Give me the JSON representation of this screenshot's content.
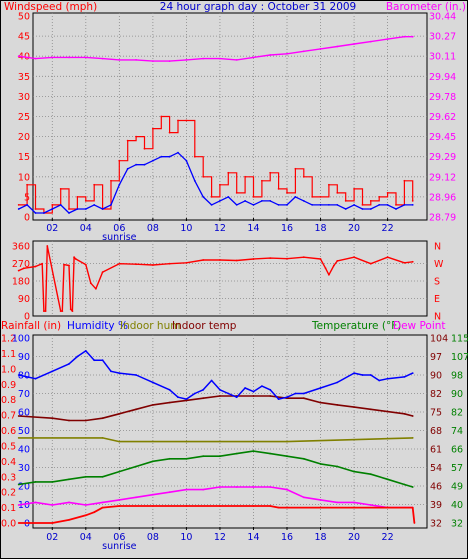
{
  "header": {
    "title": "24 hour graph day : October 31 2009"
  },
  "chart_data": [
    {
      "type": "line",
      "title": "24 hour graph day : October 31 2009",
      "left_label": "Windspeed (mph)",
      "right_label": "Barometer (in.)",
      "x_ticks": [
        "02",
        "04",
        "06",
        "08",
        "10",
        "12",
        "14",
        "16",
        "18",
        "20",
        "22"
      ],
      "x_annotation": "sunrise",
      "left_ticks": [
        "0",
        "5",
        "10",
        "15",
        "20",
        "25",
        "30",
        "35",
        "40",
        "45",
        "50"
      ],
      "right_ticks": [
        "28.79",
        "28.96",
        "29.12",
        "29.29",
        "29.45",
        "29.62",
        "29.78",
        "29.94",
        "30.11",
        "30.27",
        "30.44"
      ],
      "ylim_left": [
        0,
        50
      ],
      "ylim_right": [
        28.79,
        30.44
      ],
      "grid": true,
      "colors": {
        "gust": "#ff0000",
        "average": "#0000ff",
        "barometer": "#ff00ff",
        "left_axis": "#ff0000",
        "right_axis": "#ff00ff",
        "title": "#0000cc"
      },
      "series": [
        {
          "key": "gust",
          "x": [
            0,
            0.5,
            1,
            1.5,
            2,
            2.5,
            3,
            3.5,
            4,
            4.5,
            5,
            5.5,
            6,
            6.5,
            7,
            7.5,
            8,
            8.5,
            9,
            9.5,
            10,
            10.5,
            11,
            11.5,
            12,
            12.5,
            13,
            13.5,
            14,
            14.5,
            15,
            15.5,
            16,
            16.5,
            17,
            17.5,
            18,
            18.5,
            19,
            19.5,
            20,
            20.5,
            21,
            21.5,
            22,
            22.5,
            23,
            23.5
          ],
          "values": [
            3,
            8,
            2,
            1,
            3,
            7,
            2,
            5,
            4,
            8,
            2,
            9,
            14,
            19,
            20,
            17,
            22,
            25,
            21,
            24,
            24,
            15,
            10,
            5,
            8,
            11,
            6,
            10,
            5,
            9,
            11,
            7,
            6,
            12,
            10,
            5,
            5,
            8,
            6,
            4,
            7,
            3,
            4,
            5,
            6,
            3,
            9,
            4
          ]
        },
        {
          "key": "average",
          "x": [
            0,
            0.5,
            1,
            1.5,
            2,
            2.5,
            3,
            3.5,
            4,
            4.5,
            5,
            5.5,
            6,
            6.5,
            7,
            7.5,
            8,
            8.5,
            9,
            9.5,
            10,
            10.5,
            11,
            11.5,
            12,
            12.5,
            13,
            13.5,
            14,
            14.5,
            15,
            15.5,
            16,
            16.5,
            17,
            17.5,
            18,
            18.5,
            19,
            19.5,
            20,
            20.5,
            21,
            21.5,
            22,
            22.5,
            23,
            23.5
          ],
          "values": [
            2,
            3,
            1,
            1,
            2,
            3,
            1,
            2,
            2,
            3,
            2,
            3,
            8,
            12,
            13,
            13,
            14,
            15,
            15,
            16,
            14,
            9,
            5,
            3,
            4,
            5,
            3,
            4,
            3,
            4,
            4,
            3,
            3,
            5,
            4,
            3,
            3,
            3,
            3,
            2,
            3,
            2,
            2,
            3,
            3,
            2,
            3,
            3
          ]
        },
        {
          "key": "barometer",
          "x": [
            0,
            1,
            2,
            3,
            4,
            5,
            6,
            7,
            8,
            9,
            10,
            11,
            12,
            13,
            14,
            15,
            16,
            17,
            18,
            19,
            20,
            21,
            22,
            23,
            23.5
          ],
          "values": [
            30.11,
            30.09,
            30.1,
            30.1,
            30.1,
            30.09,
            30.08,
            30.08,
            30.07,
            30.07,
            30.08,
            30.09,
            30.09,
            30.08,
            30.1,
            30.12,
            30.13,
            30.15,
            30.17,
            30.19,
            30.21,
            30.23,
            30.25,
            30.27,
            30.27
          ]
        }
      ]
    },
    {
      "type": "line",
      "left_ticks": [
        "0",
        "90",
        "180",
        "270",
        "360"
      ],
      "right_ticks": [
        "N",
        "W",
        "S",
        "E",
        "N"
      ],
      "ylim": [
        0,
        360
      ],
      "grid": true,
      "colors": {
        "direction": "#ff0000",
        "left_axis": "#ff0000",
        "right_axis": "#ff0000"
      },
      "series": [
        {
          "key": "direction",
          "x": [
            0,
            0.3,
            1,
            1.4,
            1.5,
            1.6,
            1.7,
            2.5,
            2.6,
            2.7,
            3.0,
            3.1,
            3.2,
            3.3,
            3.4,
            4,
            4.3,
            4.6,
            5,
            6,
            7,
            8,
            9,
            10,
            11,
            12,
            13,
            14,
            15,
            16,
            17,
            18,
            18.3,
            18.5,
            18.8,
            19,
            20,
            21,
            22,
            23,
            23.5
          ],
          "values": [
            228,
            240,
            250,
            265,
            10,
            10,
            360,
            10,
            10,
            260,
            255,
            20,
            10,
            300,
            290,
            260,
            160,
            130,
            220,
            265,
            262,
            258,
            265,
            270,
            285,
            285,
            282,
            290,
            295,
            292,
            300,
            290,
            240,
            205,
            255,
            280,
            300,
            265,
            300,
            270,
            275
          ]
        }
      ]
    },
    {
      "type": "line",
      "legend": [
        "Rainfall (in)",
        "Humidity %",
        "Indoor hum",
        "Indoor temp",
        "Temperature (°F)",
        "Dew Point"
      ],
      "rain_ticks": [
        "0.0",
        "0.1",
        "0.2",
        "0.3",
        "0.4",
        "0.5",
        "0.6",
        "0.7",
        "0.8",
        "0.9",
        "1.0",
        "1.1",
        "1.2"
      ],
      "humidity_ticks": [
        "0",
        "10",
        "20",
        "30",
        "40",
        "50",
        "60",
        "70",
        "80",
        "90",
        "100"
      ],
      "indoor_temp_ticks": [
        "32",
        "40",
        "49",
        "57",
        "66",
        "74",
        "82",
        "90",
        "98",
        "107",
        "115"
      ],
      "temp_ticks": [
        "32",
        "39",
        "46",
        "54",
        "61",
        "68",
        "75",
        "82",
        "90",
        "97",
        "104"
      ],
      "rain_ylim": [
        0,
        1.2
      ],
      "humidity_ylim": [
        0,
        100
      ],
      "temp_ylim": [
        32,
        104
      ],
      "indoor_temp_ylim": [
        32,
        115
      ],
      "grid": true,
      "colors": {
        "rainfall": "#ff0000",
        "humidity": "#0000ff",
        "indoor_hum": "#808000",
        "indoor_temp": "#800000",
        "temperature": "#008000",
        "dew_point": "#ff00ff"
      },
      "series": [
        {
          "key": "humidity",
          "x": [
            0,
            1,
            2,
            3,
            3.5,
            4,
            4.5,
            5,
            5.5,
            6,
            7,
            8,
            9,
            9.5,
            10,
            10.5,
            11,
            11.5,
            12,
            12.5,
            13,
            13.5,
            14,
            14.5,
            15,
            15.5,
            16,
            16.5,
            17,
            18,
            19,
            20,
            20.5,
            21,
            21.5,
            22,
            23,
            23.5
          ],
          "values": [
            80,
            78,
            82,
            86,
            90,
            93,
            88,
            88,
            82,
            81,
            80,
            76,
            72,
            68,
            67,
            70,
            72,
            77,
            72,
            70,
            68,
            73,
            71,
            74,
            72,
            67,
            68,
            70,
            70,
            73,
            76,
            81,
            80,
            80,
            77,
            78,
            79,
            81
          ]
        },
        {
          "key": "indoor_hum",
          "x": [
            0,
            5,
            6,
            10,
            16,
            23.5
          ],
          "values": [
            46,
            46,
            44,
            44,
            44,
            46
          ]
        },
        {
          "key": "indoor_temp",
          "x": [
            0,
            2,
            3,
            4,
            5,
            6,
            7,
            8,
            9,
            10,
            11,
            12,
            13,
            14,
            15,
            16,
            17,
            18,
            19,
            20,
            21,
            22,
            23,
            23.5
          ],
          "values": [
            80,
            79,
            78,
            78,
            79,
            81,
            83,
            85,
            86,
            87,
            88,
            89,
            89,
            89,
            89,
            88,
            88,
            86,
            85,
            84,
            83,
            82,
            81,
            80
          ]
        },
        {
          "key": "temperature",
          "x": [
            0,
            1,
            2,
            3,
            4,
            5,
            6,
            7,
            8,
            9,
            10,
            11,
            12,
            13,
            14,
            15,
            16,
            17,
            18,
            19,
            20,
            21,
            22,
            23,
            23.5
          ],
          "values": [
            47,
            48,
            48,
            49,
            50,
            50,
            52,
            54,
            56,
            57,
            57,
            58,
            58,
            59,
            60,
            59,
            58,
            57,
            55,
            54,
            52,
            51,
            49,
            47,
            46
          ]
        },
        {
          "key": "dew_point",
          "x": [
            0,
            1,
            2,
            3,
            4,
            5,
            6,
            7,
            8,
            9,
            10,
            11,
            12,
            13,
            14,
            15,
            16,
            17,
            18,
            19,
            20,
            21,
            22,
            23,
            23.5
          ],
          "values": [
            39,
            40,
            39,
            40,
            39,
            40,
            41,
            42,
            43,
            44,
            45,
            45,
            46,
            46,
            46,
            46,
            45,
            42,
            41,
            40,
            40,
            39,
            38,
            38,
            38
          ]
        },
        {
          "key": "rainfall",
          "x": [
            0,
            2,
            3,
            4,
            4.5,
            5,
            6,
            8,
            10,
            12,
            14,
            15,
            15.5,
            16,
            18,
            20,
            22,
            23.5,
            23.6
          ],
          "values": [
            0,
            0,
            0.02,
            0.05,
            0.07,
            0.1,
            0.11,
            0.11,
            0.11,
            0.11,
            0.11,
            0.11,
            0.1,
            0.1,
            0.1,
            0.1,
            0.1,
            0.1,
            0.0
          ]
        }
      ]
    }
  ]
}
